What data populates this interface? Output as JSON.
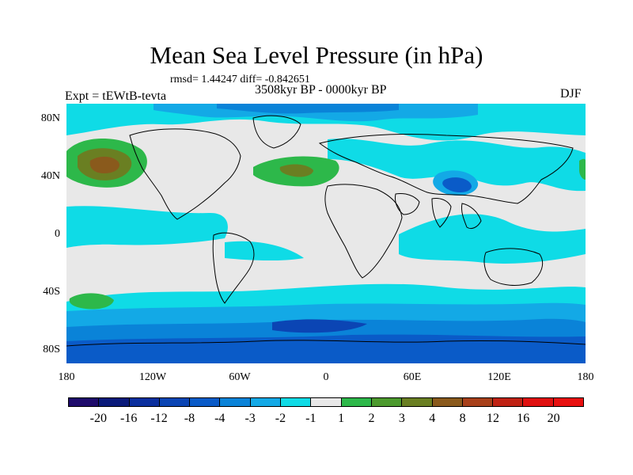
{
  "title": "Mean Sea Level Pressure (in hPa)",
  "stats_line": "rmsd= 1.44247 diff= -0.842651",
  "period": "3508kyr BP - 0000kyr BP",
  "experiment": "Expt = tEWtB-tevta",
  "season": "DJF",
  "lat_ticks": [
    "80N",
    "40N",
    "0",
    "40S",
    "80S"
  ],
  "lon_ticks": [
    "180",
    "120W",
    "60W",
    "0",
    "60E",
    "120E",
    "180"
  ],
  "legend": {
    "labels": [
      "-20",
      "-16",
      "-12",
      "-8",
      "-4",
      "-3",
      "-2",
      "-1",
      "1",
      "2",
      "3",
      "4",
      "8",
      "12",
      "16",
      "20"
    ],
    "colors": [
      "#1e0b6b",
      "#0a1a7a",
      "#0b2f9e",
      "#0b45b4",
      "#0a5bc8",
      "#0a83d8",
      "#13a9e6",
      "#0fdbe6",
      "#e8e8e8",
      "#2db84a",
      "#4c9a2e",
      "#6a7f22",
      "#8a5a1c",
      "#a8401a",
      "#c02214",
      "#e01010",
      "#e81010"
    ]
  },
  "palette": {
    "neutral": "#e8e8e8",
    "cyan": "#0fdbe6",
    "lightblue": "#13a9e6",
    "blue": "#0a83d8",
    "midblue": "#0a5bc8",
    "darkblue": "#0b45b4",
    "green": "#2db84a",
    "olive": "#6a7f22",
    "brown": "#8a5a1c"
  }
}
